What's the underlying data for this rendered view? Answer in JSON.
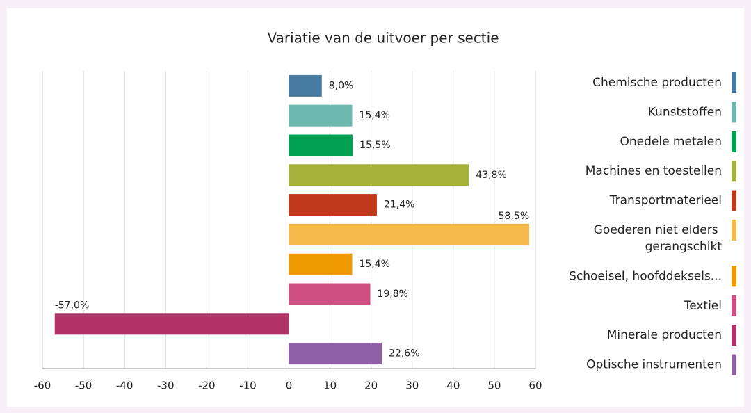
{
  "chart_data": {
    "type": "hbar",
    "title": "Variatie van de uitvoer per sectie",
    "categories": [
      "Chemische producten",
      "Kunststoffen",
      "Onedele metalen",
      "Machines en toestellen",
      "Transportmaterieel",
      "Goederen niet elders gerangschikt",
      "Schoeisel, hoofddeksels...",
      "Textiel",
      "Minerale producten",
      "Optische instrumenten"
    ],
    "values": [
      8.0,
      15.4,
      15.5,
      43.8,
      21.4,
      58.5,
      15.4,
      19.8,
      -57.0,
      22.6
    ],
    "value_labels": [
      "8,0%",
      "15,4%",
      "15,5%",
      "43,8%",
      "21,4%",
      "58,5%",
      "15,4%",
      "19,8%",
      "-57,0%",
      "22,6%"
    ],
    "colors": [
      "#467aa0",
      "#6cb8ad",
      "#00a153",
      "#a2b23a",
      "#c0391b",
      "#f5b94b",
      "#ee9a00",
      "#cf4f82",
      "#b03266",
      "#8f60a5"
    ],
    "xlim": [
      -60,
      60
    ],
    "xticks": [
      -60,
      -50,
      -40,
      -30,
      -20,
      -10,
      0,
      10,
      20,
      30,
      40,
      50,
      60
    ],
    "grid": true,
    "legend": "right"
  }
}
